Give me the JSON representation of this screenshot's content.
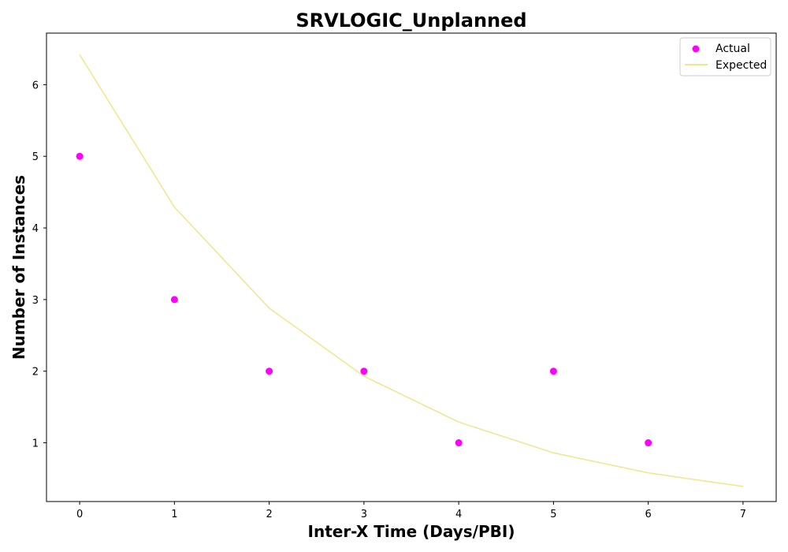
{
  "chart_data": {
    "type": "scatter",
    "title": "SRVLOGIC_Unplanned",
    "xlabel": "Inter-X Time (Days/PBI)",
    "ylabel": "Number of Instances",
    "xlim": [
      -0.35,
      7.35
    ],
    "ylim": [
      0.18,
      6.72
    ],
    "xticks": [
      0,
      1,
      2,
      3,
      4,
      5,
      6,
      7
    ],
    "yticks": [
      1,
      2,
      3,
      4,
      5,
      6
    ],
    "grid": false,
    "legend_position": "top-right",
    "series": [
      {
        "name": "Actual",
        "type": "scatter",
        "color": "#ff00ff",
        "x": [
          0,
          1,
          2,
          3,
          4,
          5,
          6
        ],
        "y": [
          5,
          3,
          2,
          2,
          1,
          2,
          1
        ]
      },
      {
        "name": "Expected",
        "type": "line",
        "color": "#f0e68c",
        "x": [
          0,
          1,
          2,
          3,
          4,
          5,
          6,
          7
        ],
        "y": [
          6.42,
          4.29,
          2.88,
          1.93,
          1.29,
          0.86,
          0.58,
          0.39
        ]
      }
    ]
  }
}
